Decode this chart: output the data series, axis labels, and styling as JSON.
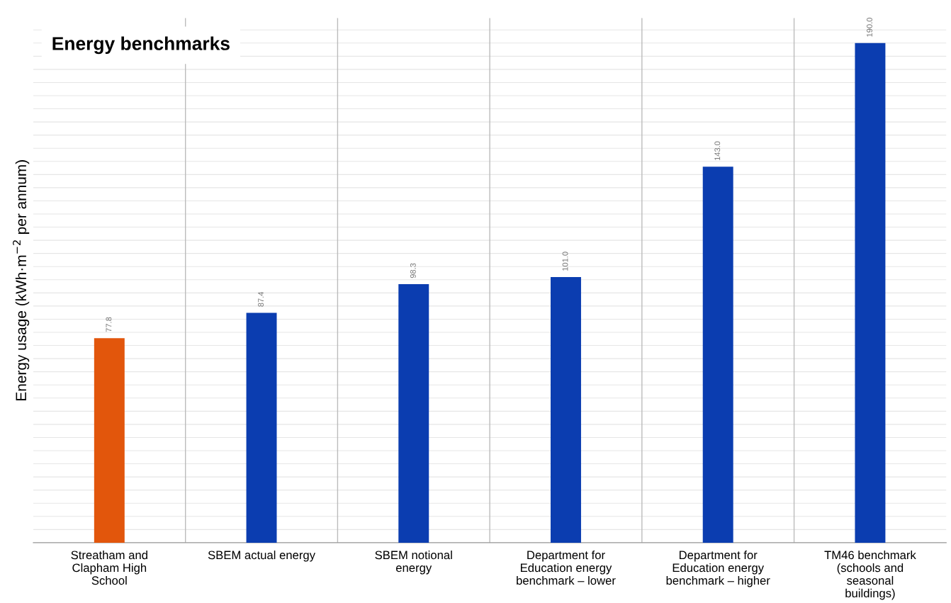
{
  "chart_data": {
    "type": "bar",
    "title": "Energy benchmarks",
    "ylabel": "Energy usage (kWh·m$^{−2}$ per annum)",
    "categories": [
      "Streatham and Clapham High School",
      "SBEM actual energy",
      "SBEM notional energy",
      "Department for Education energy benchmark – lower",
      "Department for Education energy benchmark – higher",
      "TM46 benchmark (schools and seasonal buildings)"
    ],
    "values": [
      77.8,
      87.4,
      98.3,
      101.0,
      143.0,
      190.0
    ],
    "value_labels": [
      "77.8",
      "87.4",
      "98.3",
      "101.0",
      "143.0",
      "190.0"
    ],
    "colors": [
      "#e2560c",
      "#0b3db0",
      "#0b3db0",
      "#0b3db0",
      "#0b3db0",
      "#0b3db0"
    ],
    "grid": true,
    "tick_labels": "x"
  }
}
